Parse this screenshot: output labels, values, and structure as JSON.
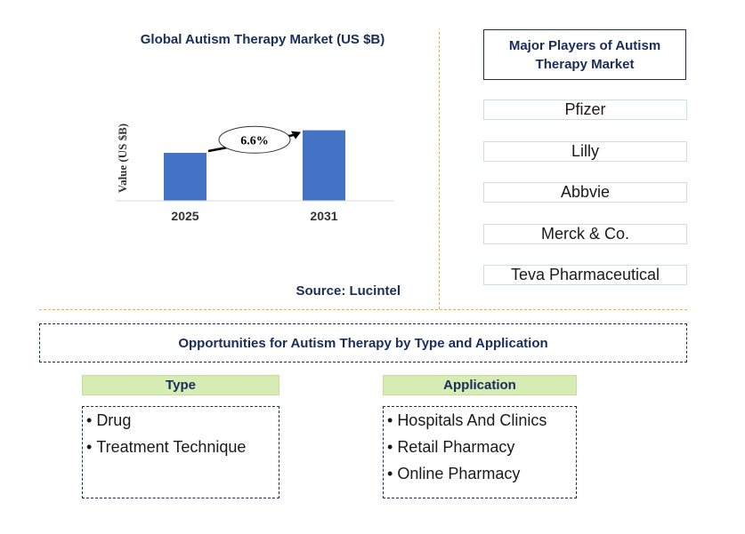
{
  "chart": {
    "title": "Global Autism Therapy Market (US $B)",
    "source": "Source: Lucintel"
  },
  "chart_data": {
    "type": "bar",
    "title": "Global Autism Therapy Market (US $B)",
    "ylabel": "Value (US $B)",
    "xlabel": "",
    "categories": [
      "2025",
      "2031"
    ],
    "values": [
      1.0,
      1.47
    ],
    "ylim": [
      0,
      1.7
    ],
    "annotation": {
      "label": "6.6%",
      "type": "CAGR arrow",
      "from": "2025",
      "to": "2031"
    },
    "bar_color": "#4472c4",
    "grid": false
  },
  "players": {
    "title": "Major Players of Autism Therapy Market",
    "items": [
      "Pfizer",
      "Lilly",
      "Abbvie",
      "Merck & Co.",
      "Teva Pharmaceutical"
    ]
  },
  "opportunities": {
    "title": "Opportunities for Autism Therapy by Type and Application",
    "type": {
      "header": "Type",
      "items": [
        "Drug",
        "Treatment Technique"
      ]
    },
    "application": {
      "header": "Application",
      "items": [
        "Hospitals And Clinics",
        "Retail Pharmacy",
        "Online Pharmacy"
      ]
    }
  },
  "colors": {
    "accent": "#1a2d5a",
    "bar": "#4472c4",
    "divider": "#e2b23a",
    "header_bg": "#d6ecb4"
  }
}
